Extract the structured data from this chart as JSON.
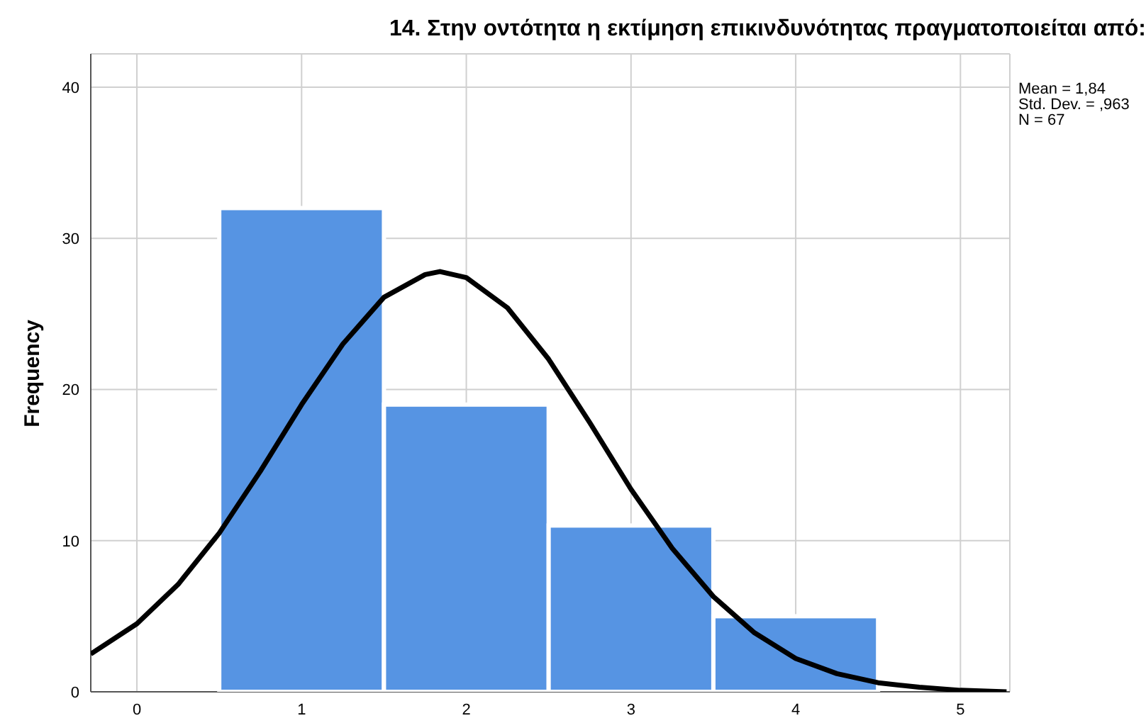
{
  "chart_data": {
    "type": "histogram",
    "title": "14. Στην οντότητα η εκτίμηση επικινδυνότητας πραγματοποιείται από:",
    "ylabel": "Frequency",
    "annotations": [
      "Mean = 1,84",
      "Std. Dev. = ,963",
      "N = 67"
    ],
    "bins": [
      0.5,
      1.5,
      2.5,
      3.5,
      4.5
    ],
    "series": [
      {
        "color": "#5694e3",
        "values": [
          32,
          19,
          11,
          5
        ]
      },
      {
        "type": "line",
        "color": "#000000",
        "x": [
          -0.28,
          0,
          0.25,
          0.5,
          0.75,
          1,
          1.25,
          1.5,
          1.75,
          1.84,
          2,
          2.25,
          2.5,
          2.75,
          3,
          3.25,
          3.5,
          3.75,
          4,
          4.25,
          4.5,
          4.75,
          5,
          5.28
        ],
        "values": [
          2.5,
          4.5,
          7.1,
          10.5,
          14.6,
          19,
          23,
          26.1,
          27.6,
          27.8,
          27.4,
          25.4,
          22,
          17.8,
          13.4,
          9.5,
          6.3,
          3.9,
          2.2,
          1.2,
          0.6,
          0.3,
          0.1,
          0
        ]
      }
    ],
    "xlim": [
      -0.28,
      5.3
    ],
    "xticks": [
      0,
      1,
      2,
      3,
      4,
      5
    ],
    "ylim": [
      0,
      42.2
    ],
    "yticks": [
      0,
      10,
      20,
      30,
      40
    ],
    "grid": true,
    "marker": "none"
  }
}
